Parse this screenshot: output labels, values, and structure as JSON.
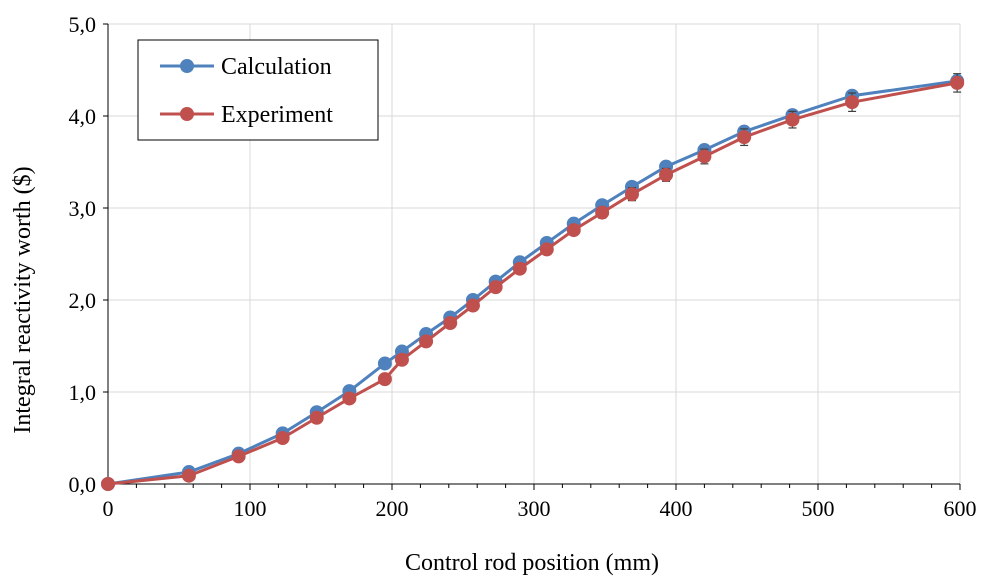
{
  "chart_data": {
    "type": "line",
    "xlabel": "Control rod position (mm)",
    "ylabel": "Integral reactivity worth ($)",
    "xlim": [
      0,
      600
    ],
    "ylim": [
      0,
      5
    ],
    "x_ticks": [
      0,
      100,
      200,
      300,
      400,
      500,
      600
    ],
    "x_tick_labels": [
      "0",
      "100",
      "200",
      "300",
      "400",
      "500",
      "600"
    ],
    "y_ticks": [
      0,
      1,
      2,
      3,
      4,
      5
    ],
    "y_tick_labels": [
      "0,0",
      "1,0",
      "2,0",
      "3,0",
      "4,0",
      "5,0"
    ],
    "grid": true,
    "legend_position": "top-left",
    "series": [
      {
        "name": "Calculation",
        "color": "#4F81BD",
        "x": [
          0,
          57,
          92,
          123,
          147,
          170,
          195,
          207,
          224,
          241,
          257,
          273,
          290,
          309,
          328,
          348,
          369,
          393,
          420,
          448,
          482,
          524,
          598
        ],
        "y": [
          0.0,
          0.13,
          0.33,
          0.55,
          0.78,
          1.01,
          1.31,
          1.44,
          1.63,
          1.81,
          2.0,
          2.2,
          2.41,
          2.62,
          2.83,
          3.03,
          3.23,
          3.45,
          3.63,
          3.83,
          4.01,
          4.22,
          4.38
        ]
      },
      {
        "name": "Experiment",
        "color": "#C0504D",
        "x": [
          0,
          57,
          92,
          123,
          147,
          170,
          195,
          207,
          224,
          241,
          257,
          273,
          290,
          309,
          328,
          348,
          369,
          393,
          420,
          448,
          482,
          524,
          598
        ],
        "y": [
          0.0,
          0.09,
          0.3,
          0.5,
          0.72,
          0.93,
          1.14,
          1.35,
          1.55,
          1.75,
          1.94,
          2.14,
          2.34,
          2.55,
          2.76,
          2.95,
          3.15,
          3.36,
          3.56,
          3.77,
          3.96,
          4.15,
          4.36
        ],
        "error": [
          0.0,
          0.0,
          0.0,
          0.0,
          0.0,
          0.0,
          0.0,
          0.0,
          0.0,
          0.02,
          0.03,
          0.03,
          0.04,
          0.05,
          0.05,
          0.06,
          0.07,
          0.07,
          0.08,
          0.09,
          0.09,
          0.1,
          0.1
        ]
      }
    ]
  }
}
